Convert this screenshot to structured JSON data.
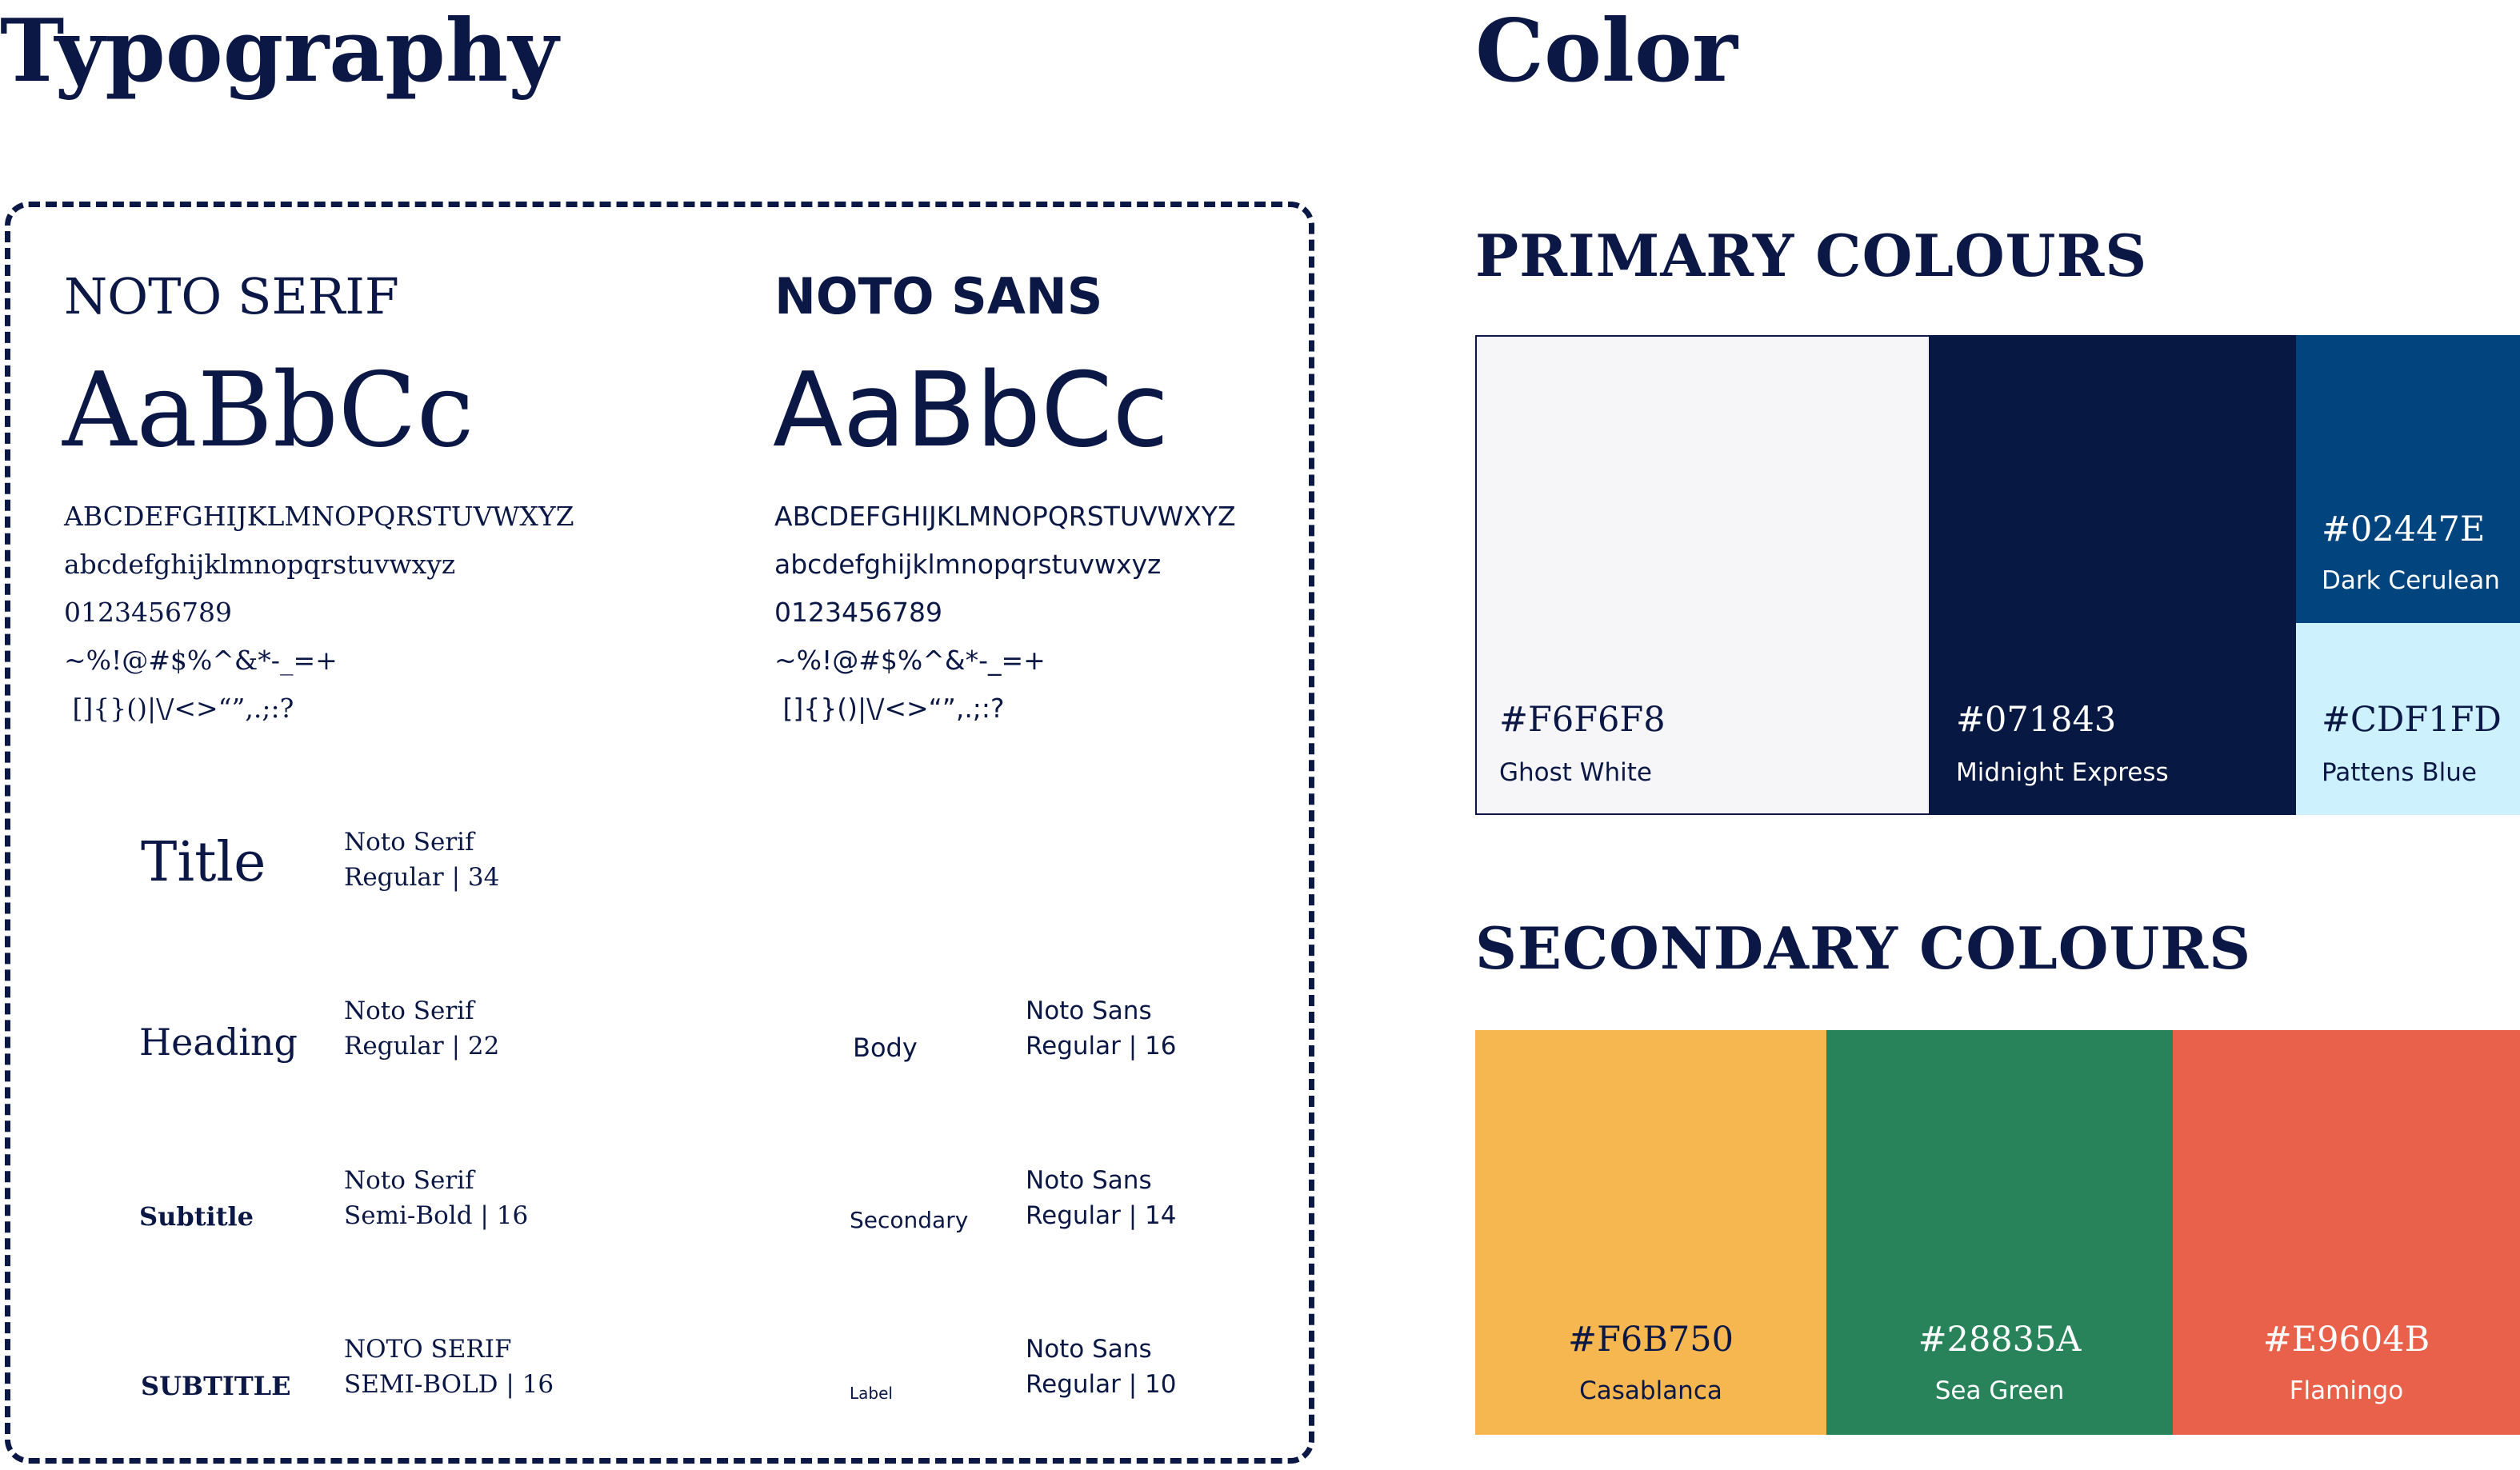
{
  "typography": {
    "title": "Typography",
    "serif_font": {
      "name": "NOTO SERIF",
      "specimen": "AaBbCc",
      "lines": [
        "ABCDEFGHIJKLMNOPQRSTUVWXYZ",
        "abcdefghijklmnopqrstuvwxyz",
        "0123456789",
        "~%!@#$%^&*-_=+",
        " []{}()|\\/<>“”,.;:?"
      ]
    },
    "sans_font": {
      "name": "NOTO SANS",
      "specimen": "AaBbCc",
      "lines": [
        "ABCDEFGHIJKLMNOPQRSTUVWXYZ",
        "abcdefghijklmnopqrstuvwxyz",
        "0123456789",
        "~%!@#$%^&*-_=+",
        " []{}()|\\/<>“”,.;:?"
      ]
    },
    "serif_styles": [
      {
        "sample": "Title",
        "spec1": "Noto Serif",
        "spec2": "Regular | 34"
      },
      {
        "sample": "Heading",
        "spec1": "Noto Serif",
        "spec2": "Regular | 22"
      },
      {
        "sample": "Subtitle",
        "spec1": "Noto Serif",
        "spec2": "Semi-Bold | 16"
      },
      {
        "sample": "SUBTITLE",
        "spec1": "NOTO SERIF",
        "spec2": "SEMI-BOLD | 16"
      }
    ],
    "sans_styles": [
      {
        "sample": "Body",
        "spec1": "Noto Sans",
        "spec2": "Regular | 16"
      },
      {
        "sample": "Secondary",
        "spec1": "Noto Sans",
        "spec2": "Regular | 14"
      },
      {
        "sample": "Label",
        "spec1": "Noto Sans",
        "spec2": "Regular | 10"
      }
    ]
  },
  "color": {
    "title": "Color",
    "primary_heading": "PRIMARY COLOURS",
    "primary": [
      {
        "hex": "#F6F6F8",
        "name": "Ghost White",
        "color": "#F6F6F8",
        "text_color": "#0b1845"
      },
      {
        "hex": "#071843",
        "name": "Midnight Express",
        "color": "#071843",
        "text_color": "#ffffff"
      },
      {
        "hex": "#02447E",
        "name": "Dark Cerulean",
        "color": "#02447E",
        "text_color": "#ffffff"
      },
      {
        "hex": "#CDF1FD",
        "name": "Pattens Blue",
        "color": "#CDF1FD",
        "text_color": "#0b1845"
      }
    ],
    "secondary_heading": "SECONDARY COLOURS",
    "secondary": [
      {
        "hex": "#F6B750",
        "name": "Casablanca",
        "color": "#F6B750",
        "text_color": "#0b1845"
      },
      {
        "hex": "#28835A",
        "name": "Sea Green",
        "color": "#28835A",
        "text_color": "#ffffff"
      },
      {
        "hex": "#E9604B",
        "name": "Flamingo",
        "color": "#E9604B",
        "text_color": "#ffffff"
      }
    ]
  }
}
